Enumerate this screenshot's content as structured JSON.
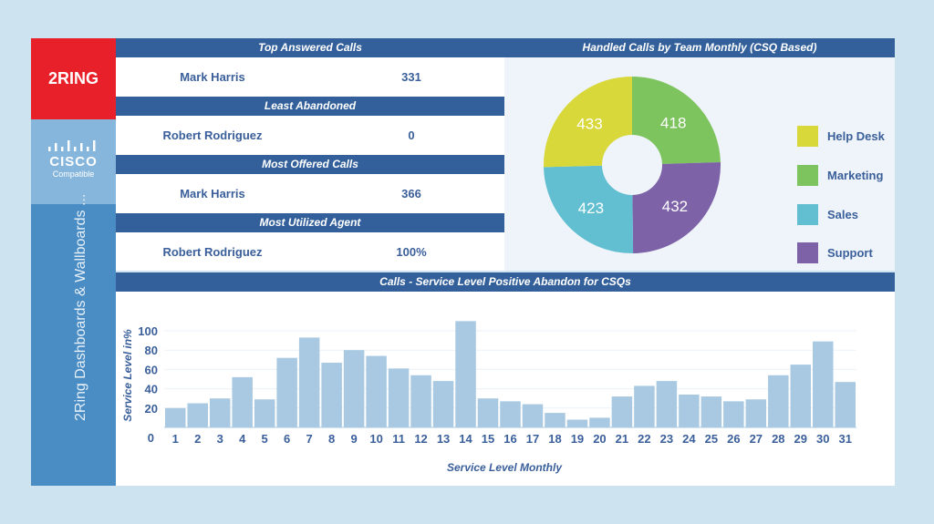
{
  "brand": {
    "logo_text": "2RING",
    "partner_logo": "CISCO",
    "partner_sub": "Compatible",
    "sidebar_title": "2Ring Dashboards & Wallboards ..."
  },
  "tables": [
    {
      "title": "Top Answered Calls",
      "name": "Mark Harris",
      "value": "331"
    },
    {
      "title": "Least Abandoned",
      "name": "Robert Rodriguez",
      "value": "0"
    },
    {
      "title": "Most Offered Calls",
      "name": "Mark Harris",
      "value": "366"
    },
    {
      "title": "Most Utilized Agent",
      "name": "Robert Rodriguez",
      "value": "100%"
    }
  ],
  "chart_data": [
    {
      "type": "pie",
      "variant": "donut",
      "title": "Handled Calls by Team Monthly (CSQ Based)",
      "legend_position": "right",
      "slices": [
        {
          "name": "Marketing",
          "value": 418,
          "color": "#7dc35e"
        },
        {
          "name": "Support",
          "value": 432,
          "color": "#7d62a8"
        },
        {
          "name": "Sales",
          "value": 423,
          "color": "#62bfd2"
        },
        {
          "name": "Help Desk",
          "value": 433,
          "color": "#d9d83a"
        }
      ],
      "legend": [
        {
          "name": "Help Desk",
          "color": "#d9d83a"
        },
        {
          "name": "Marketing",
          "color": "#7dc35e"
        },
        {
          "name": "Sales",
          "color": "#62bfd2"
        },
        {
          "name": "Support",
          "color": "#7d62a8"
        }
      ]
    },
    {
      "type": "bar",
      "title": "Calls - Service Level Positive Abandon for CSQs",
      "xlabel": "Service Level Monthly",
      "ylabel": "Service Level in%",
      "ylim": [
        0,
        110
      ],
      "yticks": [
        0,
        20,
        40,
        60,
        80,
        100
      ],
      "grid": true,
      "bar_color": "#a8c9e1",
      "categories": [
        "1",
        "2",
        "3",
        "4",
        "5",
        "6",
        "7",
        "8",
        "9",
        "10",
        "11",
        "12",
        "13",
        "14",
        "15",
        "16",
        "17",
        "18",
        "19",
        "20",
        "21",
        "22",
        "23",
        "24",
        "25",
        "26",
        "27",
        "28",
        "29",
        "30",
        "31"
      ],
      "values": [
        20,
        25,
        30,
        52,
        29,
        72,
        93,
        67,
        80,
        74,
        61,
        54,
        48,
        110,
        30,
        27,
        24,
        15,
        8,
        10,
        32,
        43,
        48,
        34,
        32,
        27,
        29,
        54,
        65,
        89,
        47
      ]
    }
  ]
}
